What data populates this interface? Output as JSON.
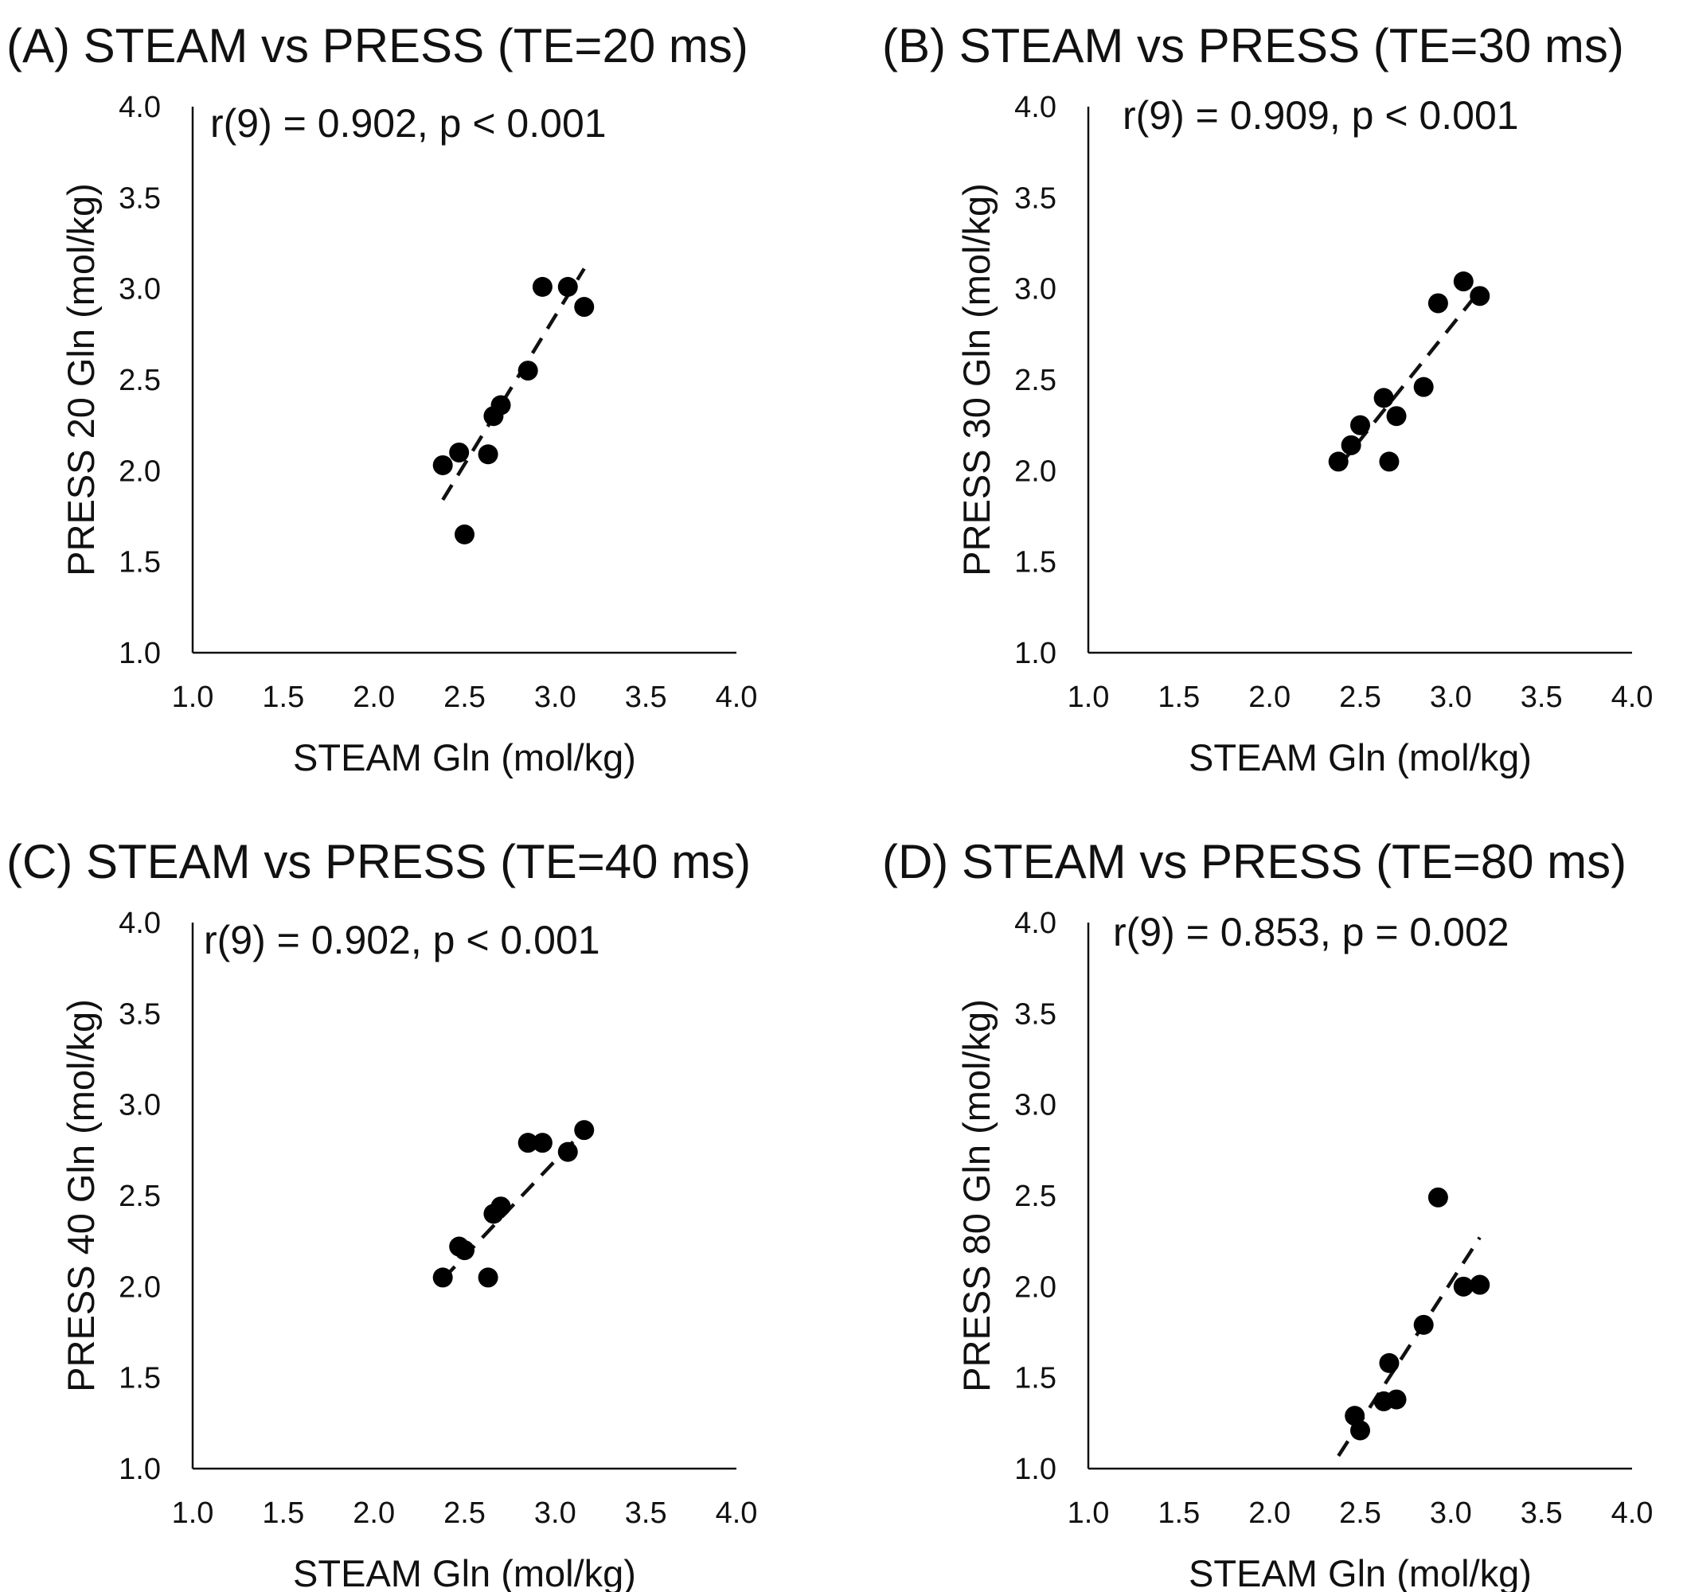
{
  "chart_data": [
    {
      "type": "scatter",
      "title": "(A) STEAM vs PRESS (TE=20 ms)",
      "annotation": "r(9) = 0.902, p < 0.001",
      "xlabel": "STEAM Gln (mol/kg)",
      "ylabel": "PRESS 20 Gln (mol/kg)",
      "xlim": [
        1.0,
        4.0
      ],
      "ylim": [
        1.0,
        4.0
      ],
      "xticks": [
        "1.0",
        "1.5",
        "2.0",
        "2.5",
        "3.0",
        "3.5",
        "4.0"
      ],
      "yticks": [
        "1.0",
        "1.5",
        "2.0",
        "2.5",
        "3.0",
        "3.5",
        "4.0"
      ],
      "grid": false,
      "points": [
        {
          "x": 2.38,
          "y": 2.03
        },
        {
          "x": 2.47,
          "y": 2.1
        },
        {
          "x": 2.5,
          "y": 1.65
        },
        {
          "x": 2.63,
          "y": 2.09
        },
        {
          "x": 2.66,
          "y": 2.3
        },
        {
          "x": 2.7,
          "y": 2.36
        },
        {
          "x": 2.85,
          "y": 2.55
        },
        {
          "x": 2.93,
          "y": 3.01
        },
        {
          "x": 3.07,
          "y": 3.01
        },
        {
          "x": 3.16,
          "y": 2.9
        }
      ],
      "trendline": {
        "x": [
          2.38,
          3.16
        ],
        "y": [
          1.84,
          3.11
        ],
        "style": "dashed"
      }
    },
    {
      "type": "scatter",
      "title": "(B) STEAM vs PRESS (TE=30 ms)",
      "annotation": "r(9) = 0.909, p < 0.001",
      "xlabel": "STEAM Gln (mol/kg)",
      "ylabel": "PRESS 30 Gln (mol/kg)",
      "xlim": [
        1.0,
        4.0
      ],
      "ylim": [
        1.0,
        4.0
      ],
      "xticks": [
        "1.0",
        "1.5",
        "2.0",
        "2.5",
        "3.0",
        "3.5",
        "4.0"
      ],
      "yticks": [
        "1.0",
        "1.5",
        "2.0",
        "2.5",
        "3.0",
        "3.5",
        "4.0"
      ],
      "grid": false,
      "points": [
        {
          "x": 2.38,
          "y": 2.05
        },
        {
          "x": 2.45,
          "y": 2.14
        },
        {
          "x": 2.5,
          "y": 2.25
        },
        {
          "x": 2.63,
          "y": 2.4
        },
        {
          "x": 2.66,
          "y": 2.05
        },
        {
          "x": 2.7,
          "y": 2.3
        },
        {
          "x": 2.85,
          "y": 2.46
        },
        {
          "x": 2.93,
          "y": 2.92
        },
        {
          "x": 3.07,
          "y": 3.04
        },
        {
          "x": 3.16,
          "y": 2.96
        }
      ],
      "trendline": {
        "x": [
          2.38,
          3.16
        ],
        "y": [
          2.02,
          2.99
        ],
        "style": "dashed"
      }
    },
    {
      "type": "scatter",
      "title": "(C) STEAM vs PRESS (TE=40 ms)",
      "annotation": "r(9) = 0.902, p < 0.001",
      "xlabel": "STEAM Gln (mol/kg)",
      "ylabel": "PRESS 40 Gln (mol/kg)",
      "xlim": [
        1.0,
        4.0
      ],
      "ylim": [
        1.0,
        4.0
      ],
      "xticks": [
        "1.0",
        "1.5",
        "2.0",
        "2.5",
        "3.0",
        "3.5",
        "4.0"
      ],
      "yticks": [
        "1.0",
        "1.5",
        "2.0",
        "2.5",
        "3.0",
        "3.5",
        "4.0"
      ],
      "grid": false,
      "points": [
        {
          "x": 2.38,
          "y": 2.05
        },
        {
          "x": 2.47,
          "y": 2.22
        },
        {
          "x": 2.5,
          "y": 2.2
        },
        {
          "x": 2.63,
          "y": 2.05
        },
        {
          "x": 2.66,
          "y": 2.4
        },
        {
          "x": 2.7,
          "y": 2.44
        },
        {
          "x": 2.85,
          "y": 2.79
        },
        {
          "x": 2.93,
          "y": 2.79
        },
        {
          "x": 3.07,
          "y": 2.74
        },
        {
          "x": 3.16,
          "y": 2.86
        }
      ],
      "trendline": {
        "x": [
          2.38,
          3.16
        ],
        "y": [
          2.04,
          2.86
        ],
        "style": "dashed"
      }
    },
    {
      "type": "scatter",
      "title": "(D) STEAM vs PRESS (TE=80 ms)",
      "annotation": "r(9) = 0.853, p = 0.002",
      "xlabel": "STEAM Gln (mol/kg)",
      "ylabel": "PRESS 80 Gln (mol/kg)",
      "xlim": [
        1.0,
        4.0
      ],
      "ylim": [
        1.0,
        4.0
      ],
      "xticks": [
        "1.0",
        "1.5",
        "2.0",
        "2.5",
        "3.0",
        "3.5",
        "4.0"
      ],
      "yticks": [
        "1.0",
        "1.5",
        "2.0",
        "2.5",
        "3.0",
        "3.5",
        "4.0"
      ],
      "grid": false,
      "points": [
        {
          "x": 2.47,
          "y": 1.29
        },
        {
          "x": 2.5,
          "y": 1.21
        },
        {
          "x": 2.63,
          "y": 1.37
        },
        {
          "x": 2.66,
          "y": 1.58
        },
        {
          "x": 2.7,
          "y": 1.38
        },
        {
          "x": 2.85,
          "y": 1.79
        },
        {
          "x": 2.93,
          "y": 2.49
        },
        {
          "x": 3.07,
          "y": 2.0
        },
        {
          "x": 3.16,
          "y": 2.01
        }
      ],
      "trendline": {
        "x": [
          2.38,
          3.16
        ],
        "y": [
          1.07,
          2.27
        ],
        "style": "dashed"
      }
    }
  ]
}
